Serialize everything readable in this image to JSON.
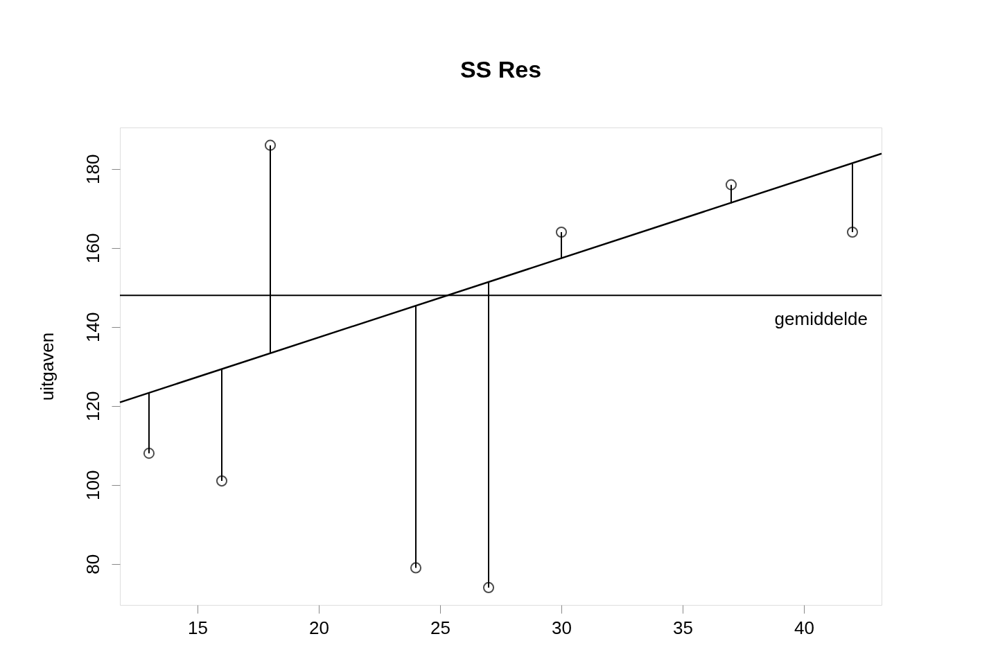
{
  "chart_data": {
    "type": "scatter",
    "title": "SS Res",
    "ylabel": "uitgaven",
    "series": [
      {
        "marker": "circle",
        "color": "#000000",
        "x": [
          13,
          16,
          18,
          24,
          27,
          30,
          37,
          42
        ],
        "values": [
          108,
          101,
          186,
          79,
          74,
          164,
          176,
          164
        ],
        "errors": [
          [
            108,
            123.3
          ],
          [
            101,
            129.3
          ],
          [
            133.3,
            186
          ],
          [
            79,
            145.3
          ],
          [
            74,
            151.3
          ],
          [
            157.3,
            164
          ],
          [
            171.3,
            176
          ],
          [
            164,
            181.3
          ]
        ]
      },
      {
        "type": "line",
        "marker": "none",
        "color": "#000000",
        "x": [
          11.8,
          43.2
        ],
        "values": [
          120.9,
          183.9
        ]
      }
    ],
    "ref_lines": [
      {
        "axis": "y",
        "value": 148,
        "label": "gemiddelde"
      }
    ],
    "xlim": [
      11.8,
      43.2
    ],
    "xticks": [
      15,
      20,
      25,
      30,
      35,
      40
    ],
    "ylim": [
      69.6,
      190.5
    ],
    "yticks": [
      80,
      100,
      120,
      140,
      160,
      180
    ],
    "grid": false
  }
}
